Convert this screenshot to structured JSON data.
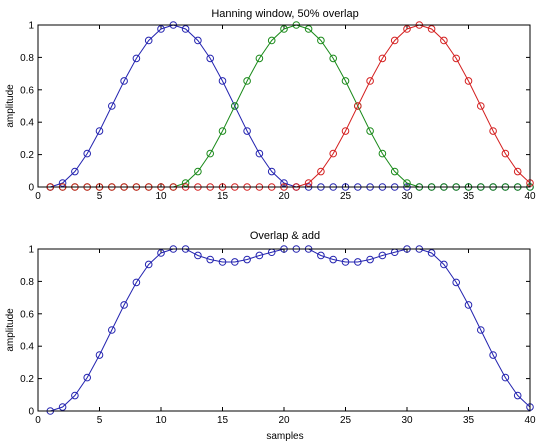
{
  "chart_data": [
    {
      "type": "line",
      "title": "Hanning window, 50% overlap",
      "xlabel": "",
      "ylabel": "amplitude",
      "xlim": [
        0,
        40
      ],
      "ylim": [
        0,
        1
      ],
      "xticks": [
        0,
        5,
        10,
        15,
        20,
        25,
        30,
        35,
        40
      ],
      "yticks": [
        0,
        0.2,
        0.4,
        0.6,
        0.8,
        1
      ],
      "xtick_labels": [
        "0",
        "5",
        "10",
        "15",
        "20",
        "25",
        "30",
        "35",
        "40"
      ],
      "ytick_labels": [
        "0",
        "0.2",
        "0.4",
        "0.6",
        "0.8",
        "1"
      ],
      "grid": false,
      "marker": "circle",
      "x": [
        1,
        2,
        3,
        4,
        5,
        6,
        7,
        8,
        9,
        10,
        11,
        12,
        13,
        14,
        15,
        16,
        17,
        18,
        19,
        20,
        21,
        22,
        23,
        24,
        25,
        26,
        27,
        28,
        29,
        30,
        31,
        32,
        33,
        34,
        35,
        36,
        37,
        38,
        39,
        40
      ],
      "series": [
        {
          "color": "#2424b0",
          "values": [
            0,
            0.0245,
            0.0955,
            0.2061,
            0.3455,
            0.5,
            0.6545,
            0.7939,
            0.9045,
            0.9755,
            1,
            0.9755,
            0.9045,
            0.7939,
            0.6545,
            0.5,
            0.3455,
            0.2061,
            0.0955,
            0.0245,
            0,
            0,
            0,
            0,
            0,
            0,
            0,
            0,
            0,
            0,
            0,
            0,
            0,
            0,
            0,
            0,
            0,
            0,
            0,
            0
          ]
        },
        {
          "color": "#1a8a1a",
          "values": [
            0,
            0,
            0,
            0,
            0,
            0,
            0,
            0,
            0,
            0,
            0,
            0.0245,
            0.0955,
            0.2061,
            0.3455,
            0.5,
            0.6545,
            0.7939,
            0.9045,
            0.9755,
            1,
            0.9755,
            0.9045,
            0.7939,
            0.6545,
            0.5,
            0.3455,
            0.2061,
            0.0955,
            0.0245,
            0,
            0,
            0,
            0,
            0,
            0,
            0,
            0,
            0,
            0
          ]
        },
        {
          "color": "#d42020",
          "values": [
            0,
            0,
            0,
            0,
            0,
            0,
            0,
            0,
            0,
            0,
            0,
            0,
            0,
            0,
            0,
            0,
            0,
            0,
            0,
            0,
            0,
            0.0245,
            0.0955,
            0.2061,
            0.3455,
            0.5,
            0.6545,
            0.7939,
            0.9045,
            0.9755,
            1,
            0.9755,
            0.9045,
            0.7939,
            0.6545,
            0.5,
            0.3455,
            0.2061,
            0.0955,
            0.0245
          ]
        }
      ]
    },
    {
      "type": "line",
      "title": "Overlap & add",
      "xlabel": "samples",
      "ylabel": "amplitude",
      "xlim": [
        0,
        40
      ],
      "ylim": [
        0,
        1
      ],
      "xticks": [
        0,
        5,
        10,
        15,
        20,
        25,
        30,
        35,
        40
      ],
      "yticks": [
        0,
        0.2,
        0.4,
        0.6,
        0.8,
        1
      ],
      "xtick_labels": [
        "0",
        "5",
        "10",
        "15",
        "20",
        "25",
        "30",
        "35",
        "40"
      ],
      "ytick_labels": [
        "0",
        "0.2",
        "0.4",
        "0.6",
        "0.8",
        "1"
      ],
      "grid": false,
      "marker": "circle",
      "x": [
        1,
        2,
        3,
        4,
        5,
        6,
        7,
        8,
        9,
        10,
        11,
        12,
        13,
        14,
        15,
        16,
        17,
        18,
        19,
        20,
        21,
        22,
        23,
        24,
        25,
        26,
        27,
        28,
        29,
        30,
        31,
        32,
        33,
        34,
        35,
        36,
        37,
        38,
        39,
        40
      ],
      "series": [
        {
          "color": "#2424b0",
          "values": [
            0,
            0.0245,
            0.0955,
            0.2061,
            0.3455,
            0.5,
            0.6545,
            0.7939,
            0.9045,
            0.9755,
            1,
            1,
            0.96,
            0.935,
            0.92,
            0.92,
            0.935,
            0.96,
            0.98,
            1,
            1,
            1,
            0.96,
            0.935,
            0.92,
            0.92,
            0.935,
            0.96,
            0.98,
            1,
            1,
            0.9755,
            0.9045,
            0.7939,
            0.6545,
            0.5,
            0.3455,
            0.2061,
            0.0955,
            0.0245
          ]
        }
      ]
    }
  ]
}
